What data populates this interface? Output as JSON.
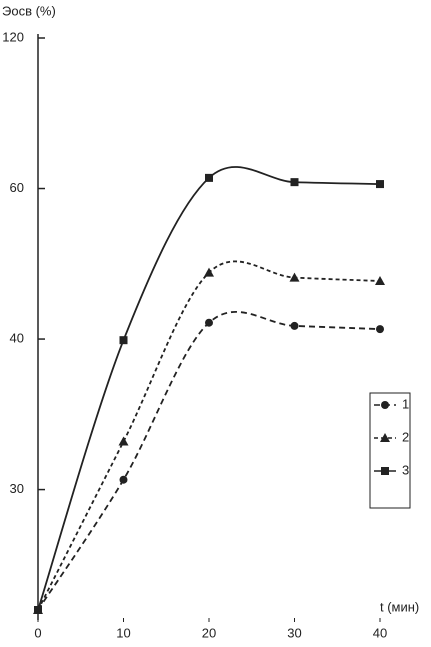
{
  "chart_data": {
    "type": "line",
    "ylabel": "Эосв (%)",
    "xlabel": "t (мин)",
    "x": [
      0,
      10,
      20,
      30,
      40
    ],
    "series": [
      {
        "name": "1",
        "color": "#222222",
        "marker": "circle",
        "dash": "6 4",
        "values": [
          25,
          30.5,
          41.5,
          41.2,
          40.9
        ]
      },
      {
        "name": "2",
        "color": "#222222",
        "marker": "triangle",
        "dash": "4 3",
        "values": [
          25,
          32.6,
          46.9,
          46.3,
          45.9
        ]
      },
      {
        "name": "3",
        "color": "#222222",
        "marker": "square",
        "dash": "none",
        "values": [
          25,
          39.9,
          62.2,
          61.3,
          60.9
        ]
      }
    ],
    "xlim": [
      0,
      40
    ],
    "xticks": [
      0,
      10,
      20,
      30,
      40
    ],
    "ylim": [
      25,
      120
    ],
    "yticks": [
      30,
      40,
      60,
      120
    ],
    "yscale": "reciprocal",
    "legend": "right"
  }
}
